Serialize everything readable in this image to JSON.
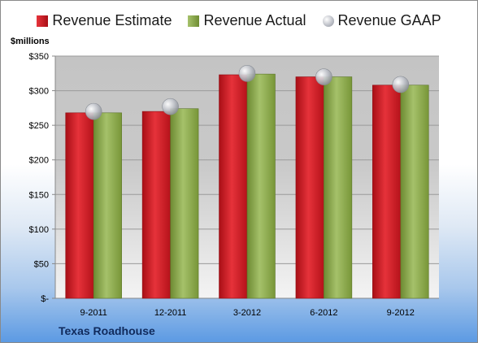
{
  "chart_data": {
    "type": "bar",
    "title": "",
    "ylabel": "$millions",
    "footer": "Texas Roadhouse",
    "categories": [
      "9-2011",
      "12-2011",
      "3-2012",
      "6-2012",
      "9-2012"
    ],
    "y_ticks": [
      "$-",
      "$50",
      "$100",
      "$150",
      "$200",
      "$250",
      "$300",
      "$350"
    ],
    "ylim": [
      0,
      350
    ],
    "grid": true,
    "legend_position": "top",
    "series": [
      {
        "name": "Revenue Estimate",
        "kind": "bar",
        "color": "#c8161e",
        "values": [
          268,
          270,
          323,
          320,
          308
        ]
      },
      {
        "name": "Revenue Actual",
        "kind": "bar",
        "color": "#8aab4a",
        "values": [
          268,
          274,
          324,
          320,
          308
        ]
      },
      {
        "name": "Revenue GAAP",
        "kind": "marker",
        "color": "#b4b8c0",
        "values": [
          270,
          277,
          325,
          320,
          309
        ]
      }
    ]
  }
}
